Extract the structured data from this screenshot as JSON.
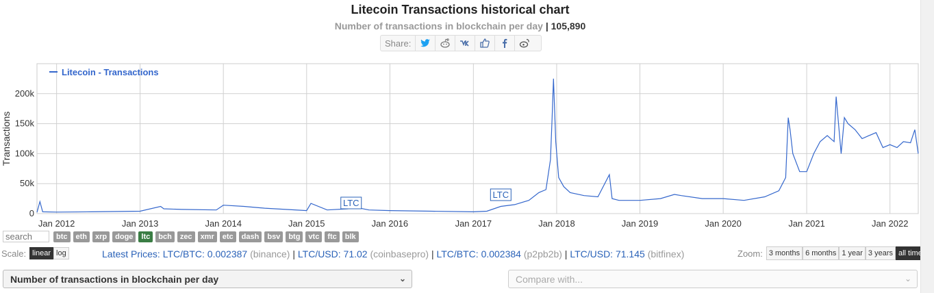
{
  "header": {
    "title": "Litecoin Transactions historical chart",
    "subtitle": "Number of transactions in blockchain per day",
    "separator": " | ",
    "current_value": "105,890"
  },
  "share": {
    "label": "Share:",
    "icons": [
      "twitter-icon",
      "reddit-icon",
      "vk-icon",
      "like-icon",
      "facebook-icon",
      "weibo-icon"
    ]
  },
  "chart_data": {
    "type": "line",
    "ylabel": "Transactions",
    "legend": "Litecoin - Transactions",
    "legend_position": "top-left",
    "grid": true,
    "color": "#3366cc",
    "x_ticks": [
      "Jan 2012",
      "Jan 2013",
      "Jan 2014",
      "Jan 2015",
      "Jan 2016",
      "Jan 2017",
      "Jan 2018",
      "Jan 2019",
      "Jan 2020",
      "Jan 2021",
      "Jan 2022"
    ],
    "y_ticks": [
      "0",
      "50k",
      "100k",
      "150k",
      "200k"
    ],
    "xlim": [
      "2011-10-07",
      "2022-05-05"
    ],
    "ylim": [
      0,
      250000
    ],
    "annotations": [
      {
        "date": "2015-07-15",
        "label": "LTC"
      },
      {
        "date": "2017-05-01",
        "label": "LTC"
      }
    ],
    "x": [
      "2011-10-07",
      "2011-10-20",
      "2011-11-01",
      "2012-01-01",
      "2012-06-01",
      "2013-01-01",
      "2013-04-01",
      "2013-04-15",
      "2013-07-01",
      "2013-12-01",
      "2014-01-01",
      "2014-04-01",
      "2014-07-01",
      "2015-01-01",
      "2015-01-20",
      "2015-04-01",
      "2015-07-01",
      "2015-07-15",
      "2015-10-01",
      "2016-01-01",
      "2016-07-01",
      "2017-01-01",
      "2017-03-01",
      "2017-05-01",
      "2017-07-01",
      "2017-09-01",
      "2017-10-15",
      "2017-11-15",
      "2017-12-05",
      "2017-12-12",
      "2017-12-18",
      "2017-12-28",
      "2018-01-10",
      "2018-02-01",
      "2018-03-01",
      "2018-05-01",
      "2018-07-01",
      "2018-08-20",
      "2018-09-01",
      "2018-10-01",
      "2019-01-01",
      "2019-04-01",
      "2019-06-01",
      "2019-07-01",
      "2019-10-01",
      "2020-01-01",
      "2020-04-01",
      "2020-07-01",
      "2020-09-01",
      "2020-10-01",
      "2020-10-12",
      "2020-10-20",
      "2020-11-01",
      "2020-12-01",
      "2021-01-01",
      "2021-02-01",
      "2021-03-01",
      "2021-04-01",
      "2021-05-01",
      "2021-05-10",
      "2021-06-01",
      "2021-06-15",
      "2021-07-01",
      "2021-08-01",
      "2021-09-01",
      "2021-10-01",
      "2021-11-01",
      "2021-12-01",
      "2022-01-01",
      "2022-02-01",
      "2022-03-01",
      "2022-04-01",
      "2022-04-20",
      "2022-05-05"
    ],
    "values": [
      2000,
      20000,
      3000,
      2500,
      3000,
      4000,
      12000,
      8000,
      7000,
      6000,
      14000,
      12000,
      9000,
      5000,
      17000,
      6000,
      8000,
      12000,
      6000,
      5000,
      4000,
      3000,
      4000,
      12000,
      15000,
      22000,
      35000,
      40000,
      90000,
      160000,
      225000,
      120000,
      60000,
      45000,
      35000,
      30000,
      28000,
      65000,
      25000,
      22000,
      22000,
      25000,
      32000,
      30000,
      25000,
      25000,
      22000,
      28000,
      38000,
      60000,
      160000,
      140000,
      100000,
      70000,
      70000,
      100000,
      120000,
      130000,
      120000,
      195000,
      100000,
      160000,
      150000,
      140000,
      125000,
      130000,
      135000,
      110000,
      115000,
      110000,
      120000,
      118000,
      140000,
      100000
    ]
  },
  "coins": {
    "search_placeholder": "search",
    "list": [
      "btc",
      "eth",
      "xrp",
      "doge",
      "ltc",
      "bch",
      "zec",
      "xmr",
      "etc",
      "dash",
      "bsv",
      "btg",
      "vtc",
      "ftc",
      "blk"
    ],
    "active": "ltc"
  },
  "scale": {
    "label": "Scale:",
    "linear": "linear",
    "log": "log",
    "selected": "linear"
  },
  "prices": {
    "label": "Latest Prices:",
    "items": [
      {
        "pair": "LTC/BTC: 0.002387",
        "source": "(binance)"
      },
      {
        "pair": "LTC/USD: 71.02",
        "source": "(coinbasepro)"
      },
      {
        "pair": "LTC/BTC: 0.002384",
        "source": "(p2pb2b)"
      },
      {
        "pair": "LTC/USD: 71.145",
        "source": "(bitfinex)"
      }
    ]
  },
  "zoom": {
    "label": "Zoom:",
    "options": [
      "3 months",
      "6 months",
      "1 year",
      "3 years",
      "all time"
    ],
    "selected": "all time"
  },
  "selects": {
    "metric": "Number of transactions in blockchain per day",
    "compare_placeholder": "Compare with..."
  }
}
